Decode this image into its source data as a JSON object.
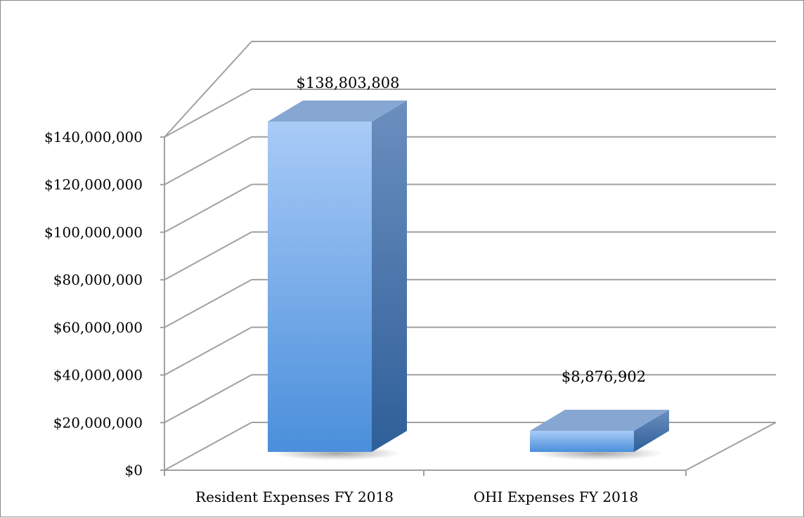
{
  "chart_data": {
    "type": "bar",
    "style": "3d-column",
    "categories": [
      "Resident Expenses FY 2018",
      "OHI Expenses FY 2018"
    ],
    "values": [
      138803808,
      8876902
    ],
    "value_labels": [
      "$138,803,808",
      "$8,876,902"
    ],
    "title": "",
    "xlabel": "",
    "ylabel": "",
    "ylim": [
      0,
      140000000
    ],
    "y_ticks": [
      0,
      20000000,
      40000000,
      60000000,
      80000000,
      100000000,
      120000000,
      140000000
    ],
    "y_tick_labels": [
      "$0",
      "$20,000,000",
      "$40,000,000",
      "$60,000,000",
      "$80,000,000",
      "$100,000,000",
      "$120,000,000",
      "$140,000,000"
    ],
    "grid": true,
    "legend": "none",
    "colors": {
      "bar_top": "#a9cbf7",
      "bar_bottom": "#4a8fdb",
      "bar_side_light": "#6b8fbf",
      "bar_side_dark": "#2f5f99",
      "bar_cap": "#86a7d2",
      "grid": "#a0a0a0"
    }
  }
}
